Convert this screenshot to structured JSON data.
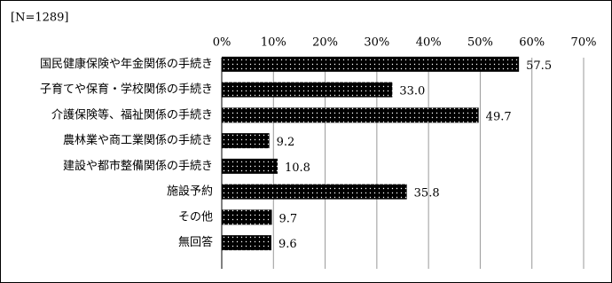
{
  "chart_data": {
    "type": "bar",
    "orientation": "horizontal",
    "subtitle": "[N=1289]",
    "categories": [
      "国民健康保険や年金関係の手続き",
      "子育てや保育・学校関係の手続き",
      "介護保険等、福祉関係の手続き",
      "農林業や商工業関係の手続き",
      "建設や都市整備関係の手続き",
      "施設予約",
      "その他",
      "無回答"
    ],
    "values": [
      57.5,
      33,
      49.7,
      9.2,
      10.8,
      35.8,
      9.7,
      9.6
    ],
    "value_labels": [
      "57.5",
      "33.0",
      "49.7",
      "9.2",
      "10.8",
      "35.8",
      "9.7",
      "9.6"
    ],
    "color": "#000000",
    "xlim": [
      0,
      70
    ],
    "xticks": [
      {
        "value": 0,
        "label": "0%"
      },
      {
        "value": 10,
        "label": "10%"
      },
      {
        "value": 20,
        "label": "20%"
      },
      {
        "value": 30,
        "label": "30%"
      },
      {
        "value": 40,
        "label": "40%"
      },
      {
        "value": 50,
        "label": "50%"
      },
      {
        "value": 60,
        "label": "60%"
      },
      {
        "value": 70,
        "label": "70%"
      }
    ],
    "grid": true
  }
}
